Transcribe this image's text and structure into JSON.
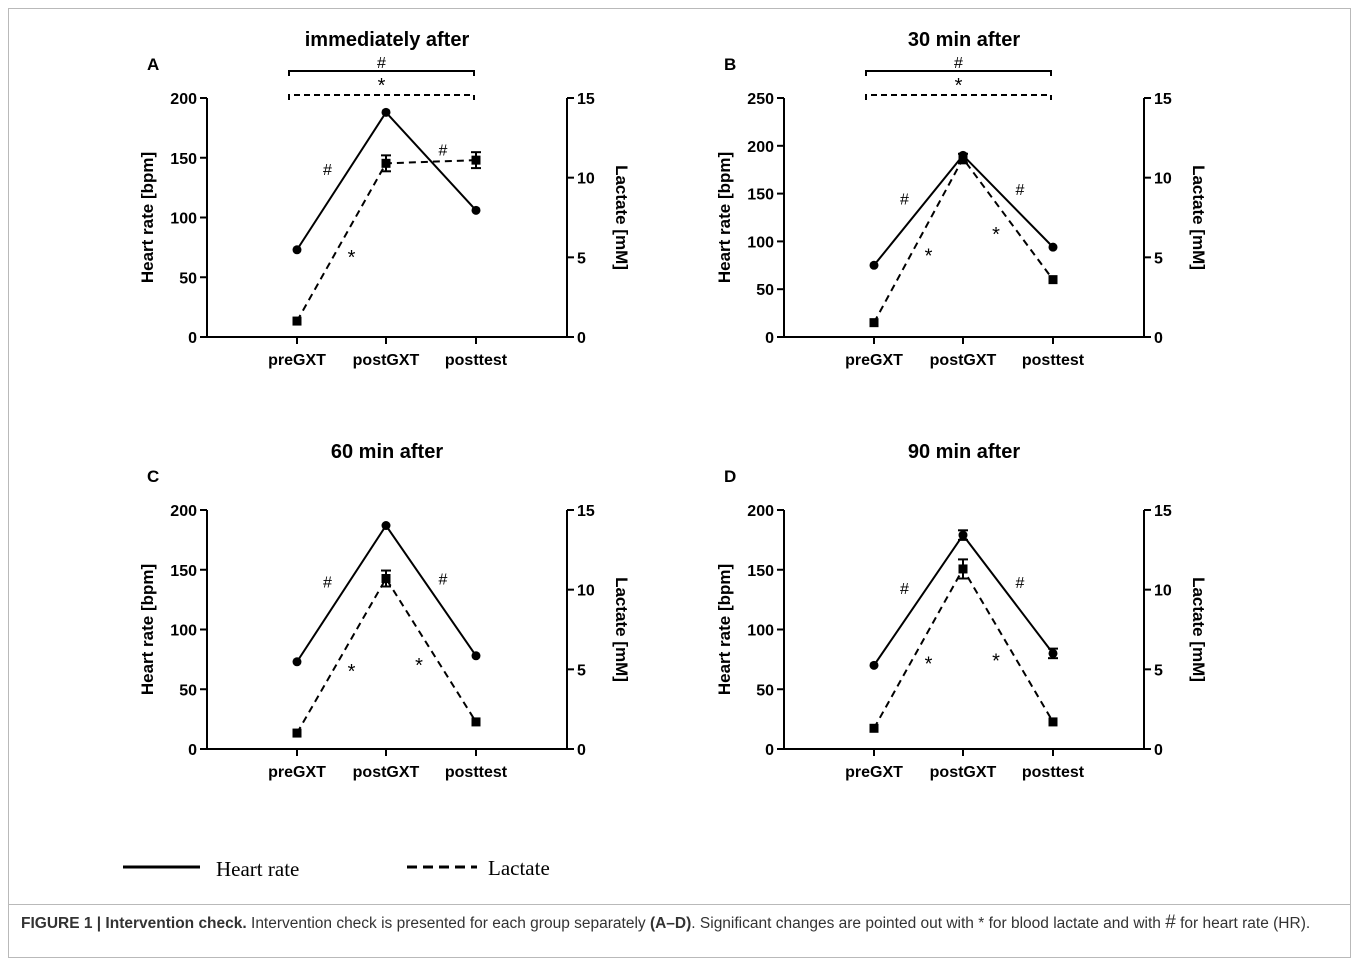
{
  "figure": {
    "legend": {
      "heart_rate_label": "Heart rate",
      "lactate_label": "Lactate"
    },
    "caption": {
      "label": "FIGURE 1 | Intervention check.",
      "text_1": " Intervention check is presented for each group separately ",
      "panels": "(A–D)",
      "text_2": ". Significant changes are pointed out with * for blood lactate and with ",
      "hash": "#",
      "text_3": " for heart rate (HR)."
    }
  },
  "chart_data": [
    {
      "panel": "A",
      "title": "immediately after",
      "type": "line",
      "categories": [
        "preGXT",
        "postGXT",
        "posttest"
      ],
      "ylabel": "Heart rate [bpm]",
      "y2label": "Lactate [mM]",
      "ylim": [
        0,
        200
      ],
      "yticks": [
        0,
        50,
        100,
        150,
        200
      ],
      "y2lim": [
        0,
        15
      ],
      "y2ticks": [
        0,
        5,
        10,
        15
      ],
      "series": [
        {
          "name": "Heart rate",
          "axis": "left",
          "style": "solid",
          "marker": "circle",
          "values": [
            73,
            188,
            106
          ],
          "errors": [
            0,
            0,
            0
          ]
        },
        {
          "name": "Lactate",
          "axis": "right",
          "style": "dashed",
          "marker": "square",
          "values": [
            1.0,
            10.9,
            11.1
          ],
          "errors": [
            0,
            0.5,
            0.5
          ]
        }
      ],
      "segment_labels": {
        "heart_rate": [
          "#",
          "#"
        ],
        "lactate": [
          "*",
          ""
        ]
      },
      "brackets": [
        {
          "symbol": "#",
          "style": "solid"
        },
        {
          "symbol": "*",
          "style": "dashed"
        }
      ]
    },
    {
      "panel": "B",
      "title": "30 min after",
      "type": "line",
      "categories": [
        "preGXT",
        "postGXT",
        "posttest"
      ],
      "ylabel": "Heart rate [bpm]",
      "y2label": "Lactate [mM]",
      "ylim": [
        0,
        250
      ],
      "yticks": [
        0,
        50,
        100,
        150,
        200,
        250
      ],
      "y2lim": [
        0,
        15
      ],
      "y2ticks": [
        0,
        5,
        10,
        15
      ],
      "series": [
        {
          "name": "Heart rate",
          "axis": "left",
          "style": "solid",
          "marker": "circle",
          "values": [
            75,
            190,
            94
          ],
          "errors": [
            0,
            0,
            0
          ]
        },
        {
          "name": "Lactate",
          "axis": "right",
          "style": "dashed",
          "marker": "square",
          "values": [
            0.9,
            11.2,
            3.6
          ],
          "errors": [
            0,
            0.3,
            0
          ]
        }
      ],
      "segment_labels": {
        "heart_rate": [
          "#",
          "#"
        ],
        "lactate": [
          "*",
          "*"
        ]
      },
      "brackets": [
        {
          "symbol": "#",
          "style": "solid"
        },
        {
          "symbol": "*",
          "style": "dashed"
        }
      ]
    },
    {
      "panel": "C",
      "title": "60 min after",
      "type": "line",
      "categories": [
        "preGXT",
        "postGXT",
        "posttest"
      ],
      "ylabel": "Heart rate [bpm]",
      "y2label": "Lactate [mM]",
      "ylim": [
        0,
        200
      ],
      "yticks": [
        0,
        50,
        100,
        150,
        200
      ],
      "y2lim": [
        0,
        15
      ],
      "y2ticks": [
        0,
        5,
        10,
        15
      ],
      "series": [
        {
          "name": "Heart rate",
          "axis": "left",
          "style": "solid",
          "marker": "circle",
          "values": [
            73,
            187,
            78
          ],
          "errors": [
            0,
            0,
            0
          ]
        },
        {
          "name": "Lactate",
          "axis": "right",
          "style": "dashed",
          "marker": "square",
          "values": [
            1.0,
            10.7,
            1.7
          ],
          "errors": [
            0,
            0.5,
            0
          ]
        }
      ],
      "segment_labels": {
        "heart_rate": [
          "#",
          "#"
        ],
        "lactate": [
          "*",
          "*"
        ]
      },
      "brackets": []
    },
    {
      "panel": "D",
      "title": "90 min after",
      "type": "line",
      "categories": [
        "preGXT",
        "postGXT",
        "posttest"
      ],
      "ylabel": "Heart rate [bpm]",
      "y2label": "Lactate [mM]",
      "ylim": [
        0,
        200
      ],
      "yticks": [
        0,
        50,
        100,
        150,
        200
      ],
      "y2lim": [
        0,
        15
      ],
      "y2ticks": [
        0,
        5,
        10,
        15
      ],
      "series": [
        {
          "name": "Heart rate",
          "axis": "left",
          "style": "solid",
          "marker": "circle",
          "values": [
            70,
            179,
            80
          ],
          "errors": [
            0,
            4,
            4
          ]
        },
        {
          "name": "Lactate",
          "axis": "right",
          "style": "dashed",
          "marker": "square",
          "values": [
            1.3,
            11.3,
            1.7
          ],
          "errors": [
            0,
            0.6,
            0
          ]
        }
      ],
      "segment_labels": {
        "heart_rate": [
          "#",
          "#"
        ],
        "lactate": [
          "*",
          "*"
        ]
      },
      "brackets": []
    }
  ]
}
